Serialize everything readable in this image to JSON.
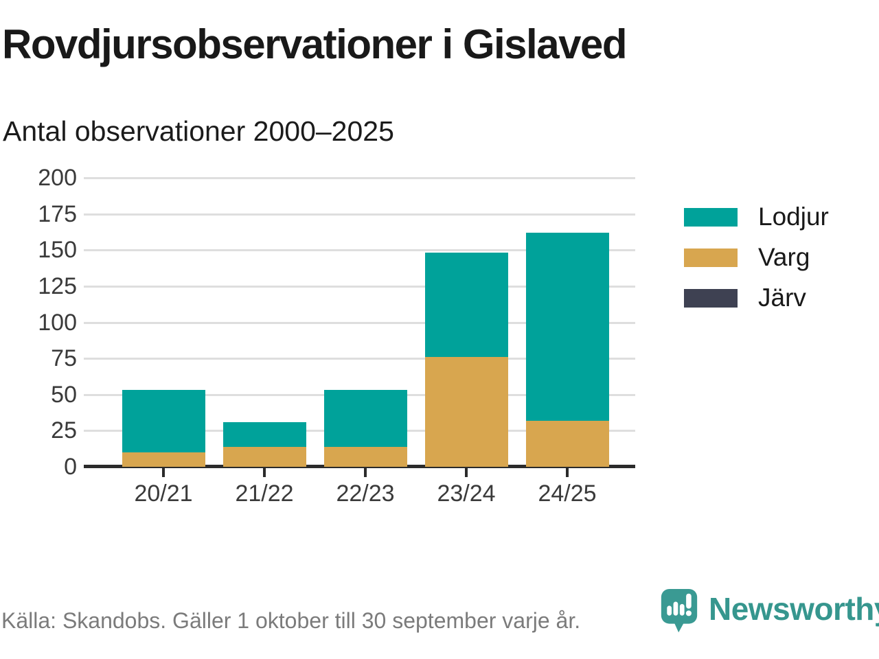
{
  "header": {
    "title": "Rovdjursobservationer i Gislaved",
    "subtitle": "Antal observationer 2000–2025"
  },
  "chart_data": {
    "type": "bar",
    "stacked": true,
    "title": "Rovdjursobservationer i Gislaved",
    "subtitle": "Antal observationer 2000–2025",
    "categories": [
      "20/21",
      "21/22",
      "22/23",
      "23/24",
      "24/25"
    ],
    "series": [
      {
        "name": "Lodjur",
        "color": "#00a29a",
        "values": [
          43,
          17,
          39,
          72,
          130
        ]
      },
      {
        "name": "Varg",
        "color": "#d8a64f",
        "values": [
          10,
          14,
          14,
          76,
          32
        ]
      },
      {
        "name": "Järv",
        "color": "#3e4152",
        "values": [
          0,
          0,
          0,
          0,
          0
        ]
      }
    ],
    "totals": [
      53,
      31,
      53,
      148,
      162
    ],
    "stack_order_bottom_to_top": [
      "Järv",
      "Varg",
      "Lodjur"
    ],
    "ylim": [
      0,
      200
    ],
    "yticks": [
      0,
      25,
      50,
      75,
      100,
      125,
      150,
      175,
      200
    ],
    "xlabel": "",
    "ylabel": "",
    "grid": "horizontal",
    "legend_position": "right",
    "colors": {
      "gridline": "#dedede",
      "axis": "#2b2b2b",
      "tick_label": "#3a3a3a"
    }
  },
  "footer": {
    "source": "Källa: Skandobs. Gäller 1 oktober till 30 september varje år.",
    "brand": "Newsworthy",
    "brand_color": "#36968e"
  }
}
